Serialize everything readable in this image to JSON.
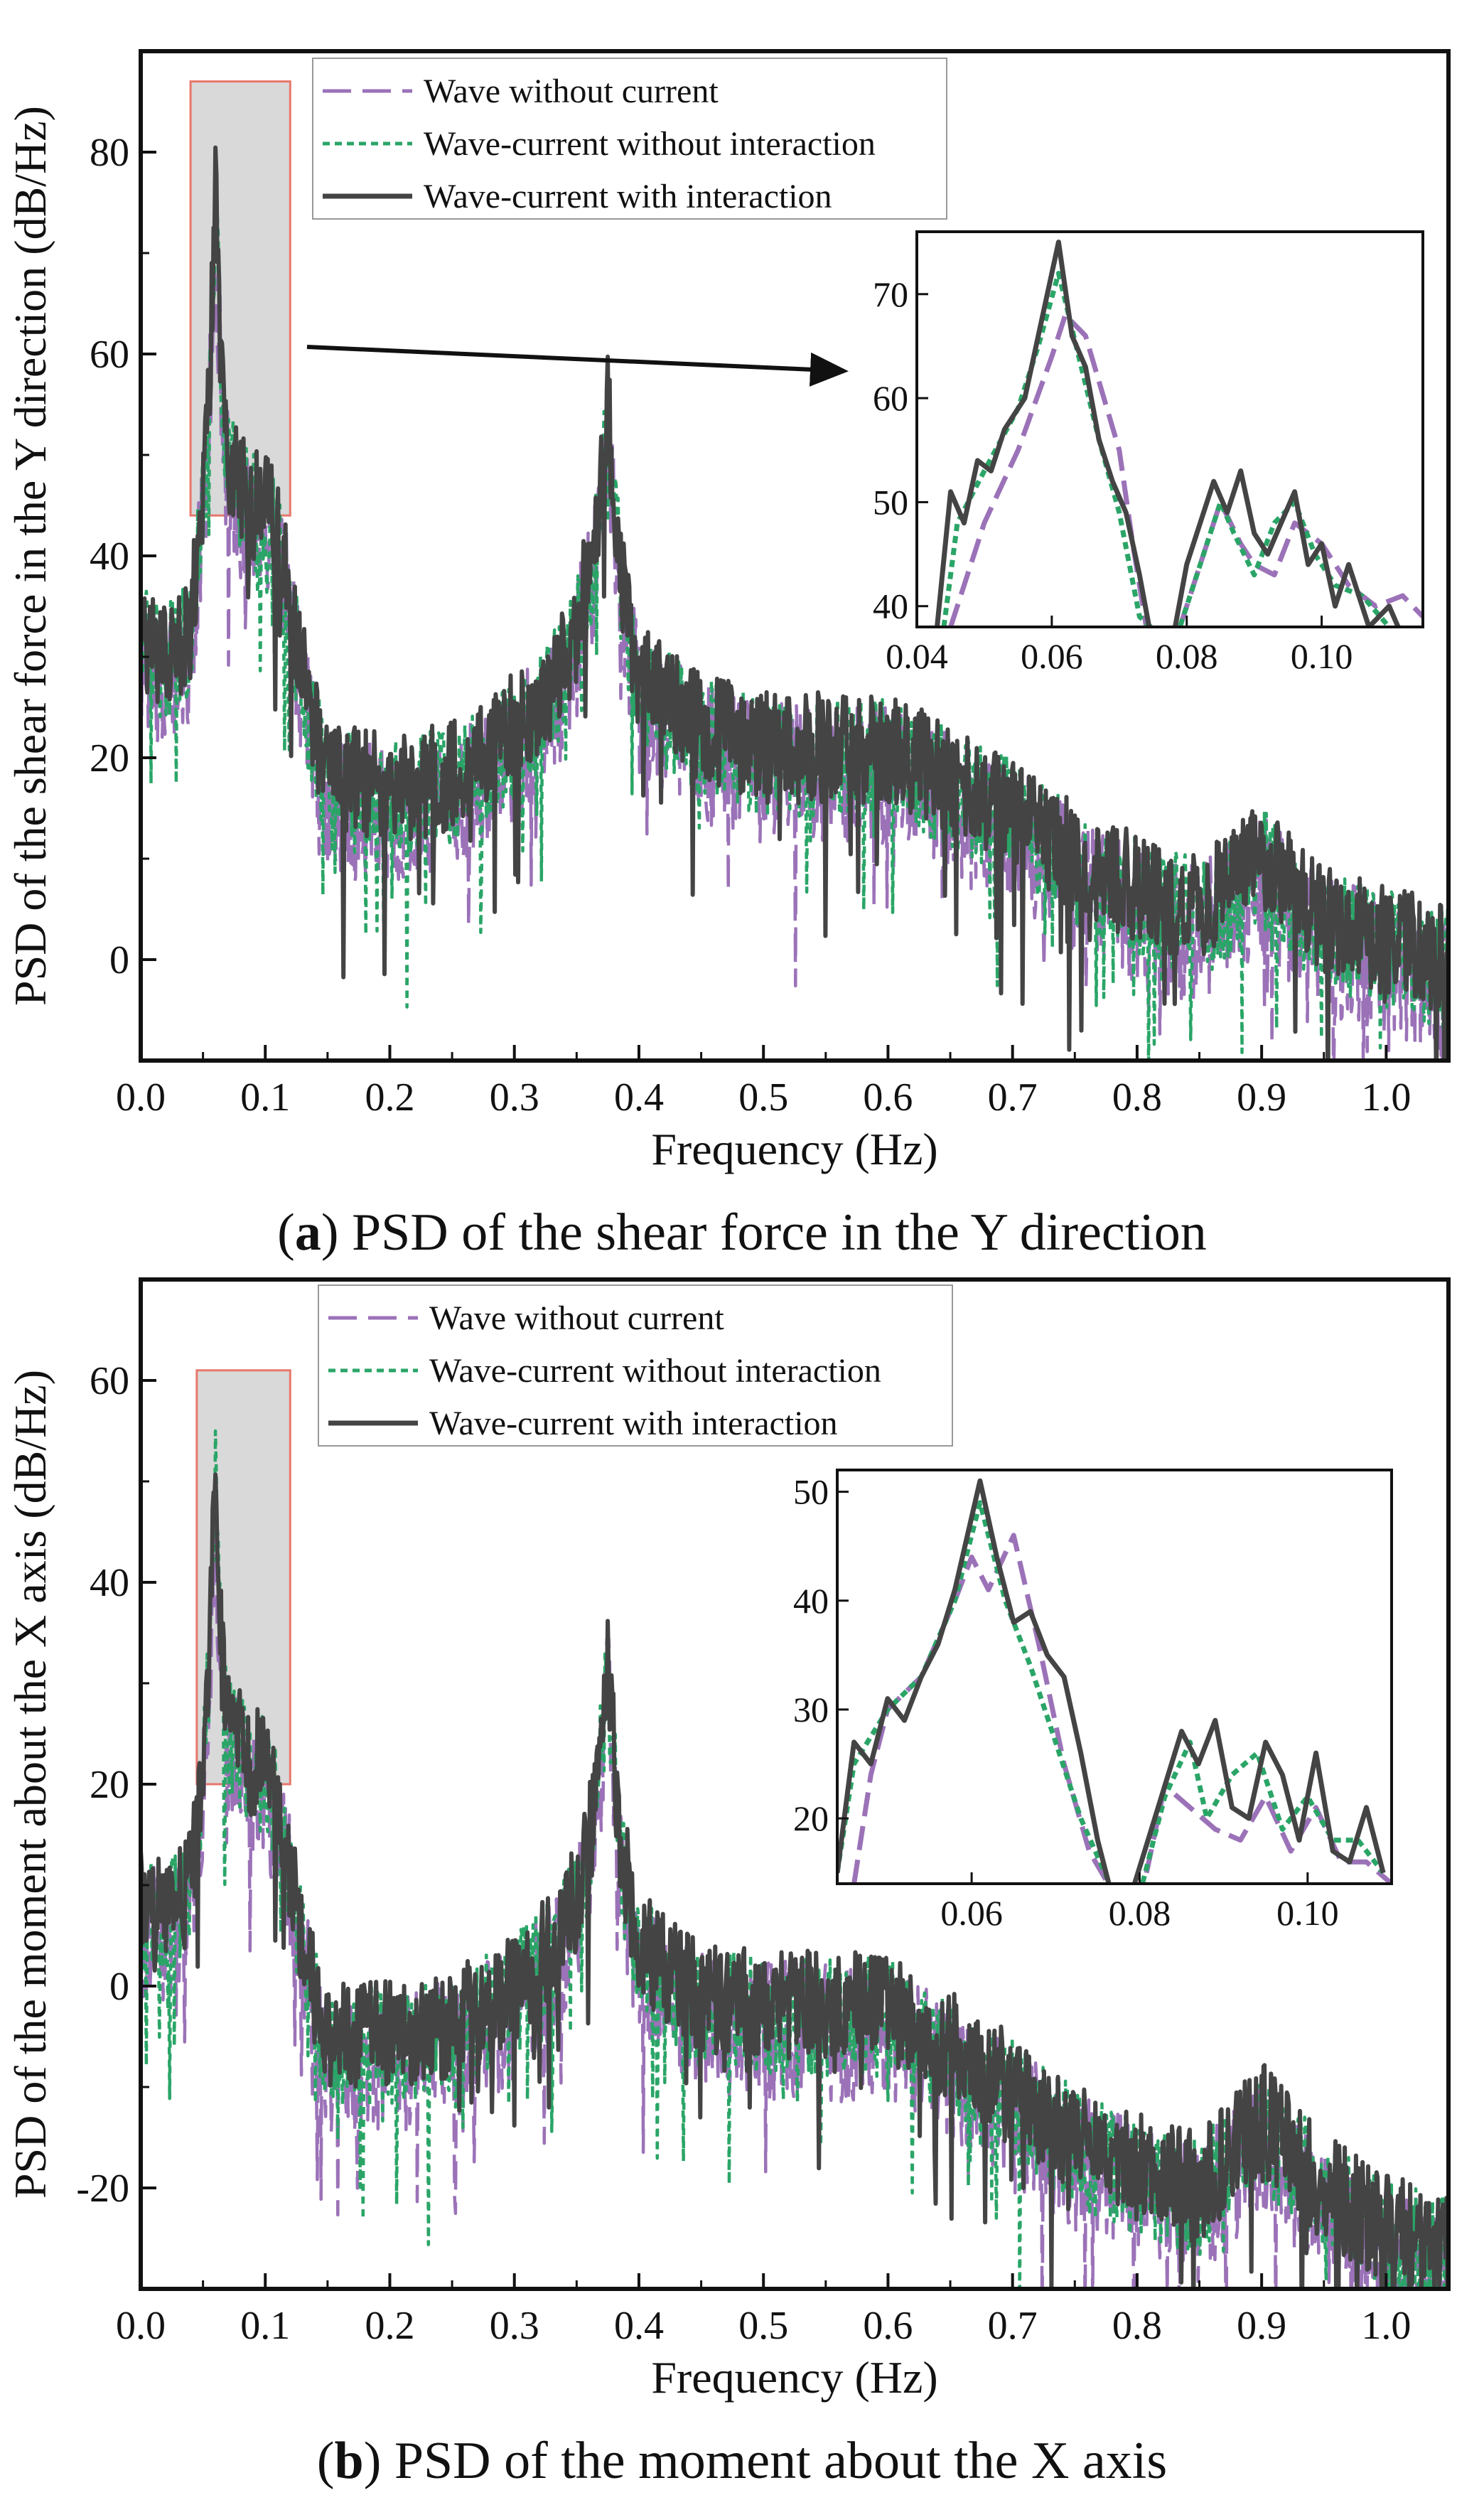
{
  "colors": {
    "wave_without_current": "#9b72b8",
    "wave_current_without_interaction": "#2aa567",
    "wave_current_with_interaction": "#444444",
    "highlight_box_fill": "#d9d9d9",
    "highlight_box_stroke": "#e8776c"
  },
  "legend_entries": [
    "Wave without current",
    "Wave-current without interaction",
    "Wave-current with interaction"
  ],
  "panels": [
    {
      "caption_letter": "a",
      "caption_text": "PSD of the shear force in the Y direction",
      "ylabel": "PSD of the shear force in the Y direction (dB/Hz)",
      "xlabel": "Frequency (Hz)",
      "xticks": [
        "0.0",
        "0.1",
        "0.2",
        "0.3",
        "0.4",
        "0.5",
        "0.6",
        "0.7",
        "0.8",
        "0.9",
        "1.0"
      ],
      "yticks": [
        "0",
        "20",
        "40",
        "60",
        "80"
      ],
      "inset_xticks": [
        "0.04",
        "0.06",
        "0.08",
        "0.10"
      ],
      "inset_yticks": [
        "40",
        "50",
        "60",
        "70"
      ]
    },
    {
      "caption_letter": "b",
      "caption_text": "PSD of the moment about the X axis",
      "ylabel": "PSD of the moment about the X axis (dB/Hz)",
      "xlabel": "Frequency (Hz)",
      "xticks": [
        "0.0",
        "0.1",
        "0.2",
        "0.3",
        "0.4",
        "0.5",
        "0.6",
        "0.7",
        "0.8",
        "0.9",
        "1.0"
      ],
      "yticks": [
        "-20",
        "0",
        "20",
        "40",
        "60"
      ],
      "inset_xticks": [
        "0.06",
        "0.08",
        "0.10"
      ],
      "inset_yticks": [
        "20",
        "30",
        "40",
        "50"
      ]
    }
  ],
  "chart_data": [
    {
      "type": "line",
      "title": "PSD of the shear force in the Y direction",
      "xlabel": "Frequency (Hz)",
      "ylabel": "PSD of the shear force in the Y direction (dB/Hz)",
      "xlim": [
        0,
        1.05
      ],
      "ylim": [
        -10,
        90
      ],
      "legend": "top-left",
      "envelope": {
        "x": [
          0.0,
          0.02,
          0.04,
          0.05,
          0.055,
          0.06,
          0.065,
          0.07,
          0.08,
          0.09,
          0.1,
          0.11,
          0.12,
          0.13,
          0.15,
          0.2,
          0.25,
          0.3,
          0.33,
          0.35,
          0.365,
          0.375,
          0.385,
          0.4,
          0.45,
          0.5,
          0.55,
          0.6,
          0.65,
          0.7,
          0.75,
          0.8,
          0.85,
          0.9,
          0.95,
          1.0,
          1.05
        ],
        "y": [
          32,
          30,
          33,
          45,
          56,
          75,
          57,
          50,
          47,
          45,
          46,
          42,
          36,
          28,
          18,
          17,
          18,
          23,
          27,
          33,
          42,
          55,
          38,
          28,
          23,
          21,
          21,
          21,
          18,
          15,
          10,
          7,
          5,
          10,
          4,
          2,
          0
        ]
      },
      "series": [
        {
          "name": "Wave without current",
          "color_key": "wave_without_current",
          "style": "dashed",
          "offset": -2.5,
          "noise": 7
        },
        {
          "name": "Wave-current without interaction",
          "color_key": "wave_current_without_interaction",
          "style": "dotted",
          "offset": -1,
          "noise": 6
        },
        {
          "name": "Wave-current with interaction",
          "color_key": "wave_current_with_interaction",
          "style": "solid",
          "offset": 0,
          "noise": 5.5
        }
      ],
      "highlight_region": {
        "x": [
          0.04,
          0.12
        ],
        "y": [
          44,
          87
        ]
      },
      "inset": {
        "xlim": [
          0.04,
          0.115
        ],
        "ylim": [
          38,
          76
        ],
        "series": [
          {
            "name": "Wave without current",
            "x": [
              0.045,
              0.05,
              0.055,
              0.06,
              0.062,
              0.065,
              0.07,
              0.072,
              0.074,
              0.078,
              0.082,
              0.085,
              0.088,
              0.09,
              0.093,
              0.096,
              0.1,
              0.104,
              0.108,
              0.112,
              0.115
            ],
            "y": [
              38,
              48,
              55,
              64,
              68,
              66,
              55,
              46,
              38,
              36,
              44,
              50,
              46,
              44,
              43,
              48,
              46,
              42,
              40,
              41,
              39
            ]
          },
          {
            "name": "Wave-current without interaction",
            "x": [
              0.044,
              0.046,
              0.05,
              0.055,
              0.058,
              0.061,
              0.064,
              0.067,
              0.07,
              0.073,
              0.078,
              0.082,
              0.085,
              0.087,
              0.09,
              0.093,
              0.096,
              0.099,
              0.102,
              0.106,
              0.11
            ],
            "y": [
              38,
              48,
              53,
              59,
              65,
              72,
              64,
              56,
              49,
              39,
              36,
              44,
              50,
              47,
              43,
              48,
              50,
              45,
              42,
              41,
              38
            ]
          },
          {
            "name": "Wave-current with interaction",
            "x": [
              0.043,
              0.045,
              0.047,
              0.049,
              0.051,
              0.053,
              0.056,
              0.058,
              0.061,
              0.063,
              0.065,
              0.067,
              0.069,
              0.071,
              0.073,
              0.075,
              0.078,
              0.08,
              0.082,
              0.084,
              0.086,
              0.088,
              0.09,
              0.092,
              0.094,
              0.096,
              0.098,
              0.1,
              0.102,
              0.104,
              0.107,
              0.11,
              0.112
            ],
            "y": [
              38,
              51,
              48,
              54,
              53,
              57,
              60,
              66,
              75,
              66,
              63,
              56,
              52,
              49,
              43,
              36,
              37,
              44,
              48,
              52,
              49,
              53,
              47,
              45,
              48,
              51,
              44,
              46,
              40,
              44,
              38,
              40,
              37
            ]
          }
        ]
      }
    },
    {
      "type": "line",
      "title": "PSD of the moment about the X axis",
      "xlabel": "Frequency (Hz)",
      "ylabel": "PSD of the moment about the X axis (dB/Hz)",
      "xlim": [
        0,
        1.05
      ],
      "ylim": [
        -30,
        70
      ],
      "legend": "top-left",
      "envelope": {
        "x": [
          0.0,
          0.02,
          0.04,
          0.05,
          0.055,
          0.06,
          0.065,
          0.07,
          0.08,
          0.09,
          0.1,
          0.11,
          0.12,
          0.13,
          0.15,
          0.2,
          0.25,
          0.3,
          0.33,
          0.35,
          0.365,
          0.375,
          0.385,
          0.4,
          0.45,
          0.5,
          0.55,
          0.6,
          0.65,
          0.7,
          0.75,
          0.8,
          0.85,
          0.9,
          0.95,
          1.0,
          1.05
        ],
        "y": [
          8,
          7,
          10,
          22,
          33,
          50,
          33,
          26,
          24,
          22,
          22,
          18,
          12,
          4,
          -5,
          -5,
          -4,
          0,
          4,
          9,
          18,
          32,
          14,
          4,
          -1,
          -2,
          -2,
          -2,
          -6,
          -10,
          -15,
          -18,
          -20,
          -13,
          -20,
          -24,
          -26
        ]
      },
      "series": [
        {
          "name": "Wave without current",
          "color_key": "wave_without_current",
          "style": "dashed",
          "offset": -2.5,
          "noise": 7
        },
        {
          "name": "Wave-current without interaction",
          "color_key": "wave_current_without_interaction",
          "style": "dotted",
          "offset": -1,
          "noise": 6
        },
        {
          "name": "Wave-current with interaction",
          "color_key": "wave_current_with_interaction",
          "style": "solid",
          "offset": 0,
          "noise": 5.5
        }
      ],
      "highlight_region": {
        "x": [
          0.045,
          0.12
        ],
        "y": [
          20,
          61
        ]
      },
      "inset": {
        "xlim": [
          0.044,
          0.11
        ],
        "ylim": [
          14,
          52
        ],
        "series": [
          {
            "name": "Wave without current",
            "x": [
              0.046,
              0.048,
              0.05,
              0.054,
              0.058,
              0.06,
              0.062,
              0.065,
              0.068,
              0.071,
              0.074,
              0.077,
              0.08,
              0.083,
              0.086,
              0.089,
              0.092,
              0.095,
              0.098,
              0.101,
              0.104,
              0.107,
              0.11
            ],
            "y": [
              14,
              24,
              30,
              33,
              40,
              44,
              41,
              46,
              36,
              25,
              17,
              13,
              12,
              23,
              21,
              19,
              18,
              22,
              17,
              21,
              16,
              16,
              14
            ]
          },
          {
            "name": "Wave-current without interaction",
            "x": [
              0.044,
              0.046,
              0.05,
              0.054,
              0.058,
              0.061,
              0.064,
              0.067,
              0.07,
              0.073,
              0.077,
              0.08,
              0.083,
              0.086,
              0.088,
              0.091,
              0.094,
              0.097,
              0.1,
              0.103,
              0.106,
              0.109
            ],
            "y": [
              15,
              25,
              30,
              33,
              40,
              49,
              40,
              34,
              27,
              20,
              13,
              13,
              22,
              27,
              20,
              24,
              26,
              19,
              22,
              18,
              18,
              15
            ]
          },
          {
            "name": "Wave-current with interaction",
            "x": [
              0.044,
              0.046,
              0.048,
              0.05,
              0.052,
              0.054,
              0.056,
              0.058,
              0.061,
              0.063,
              0.065,
              0.067,
              0.069,
              0.071,
              0.073,
              0.075,
              0.077,
              0.079,
              0.081,
              0.083,
              0.085,
              0.087,
              0.089,
              0.091,
              0.093,
              0.095,
              0.097,
              0.099,
              0.101,
              0.103,
              0.105,
              0.107,
              0.109
            ],
            "y": [
              15,
              27,
              25,
              31,
              29,
              33,
              36,
              41,
              51,
              44,
              38,
              39,
              35,
              33,
              26,
              18,
              12,
              13,
              18,
              23,
              28,
              25,
              29,
              21,
              20,
              27,
              24,
              18,
              26,
              17,
              16,
              21,
              15
            ]
          }
        ]
      }
    }
  ]
}
